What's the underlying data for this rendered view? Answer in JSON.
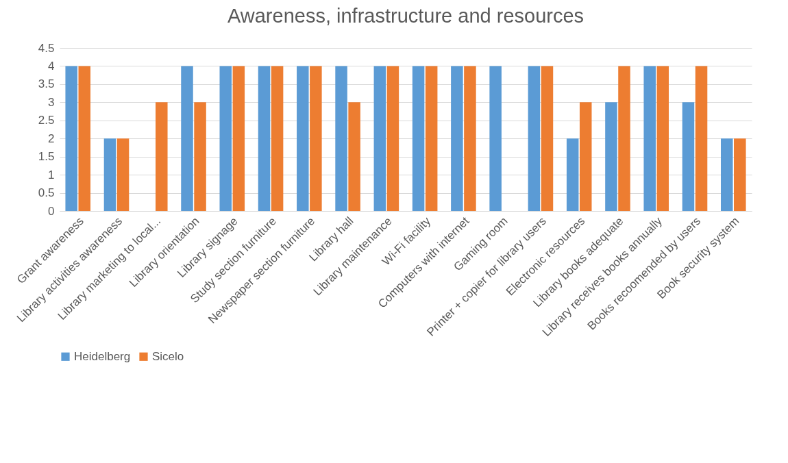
{
  "chart_data": {
    "type": "bar",
    "title": "Awareness, infrastructure and resources",
    "categories": [
      "Grant awareness",
      "Library activities awareness",
      "Library marketing to local...",
      "Library orientation",
      "Library signage",
      "Study section furniture",
      "Newspaper section furniture",
      "Library hall",
      "Library maintenance",
      "Wi-Fi facility",
      "Computers with internet",
      "Gaming room",
      "Printer + copier for library users",
      "Electronic resources",
      "Library books adequate",
      "Library receives books annually",
      "Books recoomended by users",
      "Book security system"
    ],
    "series": [
      {
        "name": "Heidelberg",
        "color": "#5b9bd5",
        "values": [
          4,
          2,
          null,
          4,
          4,
          4,
          4,
          4,
          4,
          4,
          4,
          4,
          4,
          2,
          3,
          4,
          3,
          2
        ]
      },
      {
        "name": "Sicelo",
        "color": "#ed7d31",
        "values": [
          4,
          2,
          3,
          3,
          4,
          4,
          4,
          3,
          4,
          4,
          4,
          null,
          4,
          3,
          4,
          4,
          4,
          2
        ]
      }
    ],
    "ylim": [
      0,
      4.5
    ],
    "yticks": [
      0,
      0.5,
      1,
      1.5,
      2,
      2.5,
      3,
      3.5,
      4,
      4.5
    ],
    "grid": "y",
    "legend": "bottom"
  }
}
